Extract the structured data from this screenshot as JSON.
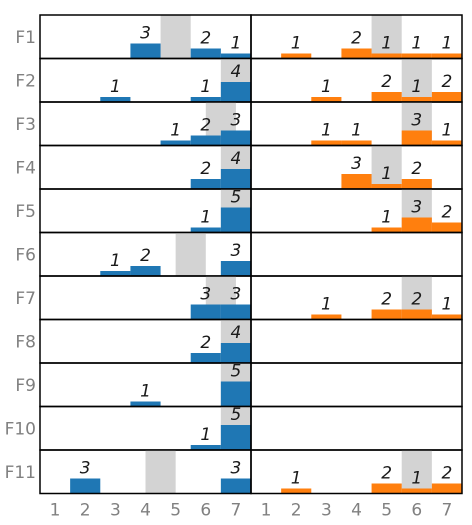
{
  "chart_data": {
    "type": "bar",
    "rows": [
      "F1",
      "F2",
      "F3",
      "F4",
      "F5",
      "F6",
      "F7",
      "F8",
      "F9",
      "F10",
      "F11"
    ],
    "x_ticks": [
      1,
      2,
      3,
      4,
      5,
      6,
      7
    ],
    "series_colors": [
      "#1f77b4",
      "#ff7f0e"
    ],
    "highlight_color": "#d3d3d3",
    "grid": false,
    "panels": [
      {
        "color": "#1f77b4",
        "rows": [
          {
            "label": "F1",
            "counts": {
              "4": 3,
              "6": 2,
              "7": 1
            },
            "highlight": [
              4.5,
              5.5
            ]
          },
          {
            "label": "F2",
            "counts": {
              "3": 1,
              "6": 1,
              "7": 4
            },
            "highlight": [
              6.5,
              7.5
            ]
          },
          {
            "label": "F3",
            "counts": {
              "5": 1,
              "6": 2,
              "7": 3
            },
            "highlight": [
              6.0,
              7.0
            ]
          },
          {
            "label": "F4",
            "counts": {
              "6": 2,
              "7": 4
            },
            "highlight": [
              6.5,
              7.5
            ]
          },
          {
            "label": "F5",
            "counts": {
              "6": 1,
              "7": 5
            },
            "highlight": [
              6.5,
              7.5
            ]
          },
          {
            "label": "F6",
            "counts": {
              "3": 1,
              "4": 2,
              "7": 3
            },
            "highlight": [
              5.0,
              6.0
            ]
          },
          {
            "label": "F7",
            "counts": {
              "6": 3,
              "7": 3
            },
            "highlight": [
              6.0,
              7.0
            ]
          },
          {
            "label": "F8",
            "counts": {
              "6": 2,
              "7": 4
            },
            "highlight": [
              6.5,
              7.5
            ]
          },
          {
            "label": "F9",
            "counts": {
              "4": 1,
              "7": 5
            },
            "highlight": [
              6.5,
              7.5
            ]
          },
          {
            "label": "F10",
            "counts": {
              "6": 1,
              "7": 5
            },
            "highlight": [
              6.5,
              7.5
            ]
          },
          {
            "label": "F11",
            "counts": {
              "2": 3,
              "7": 3
            },
            "highlight": [
              4.0,
              5.0
            ]
          }
        ]
      },
      {
        "color": "#ff7f0e",
        "rows": [
          {
            "label": "F1",
            "counts": {
              "2": 1,
              "4": 2,
              "5": 1,
              "6": 1,
              "7": 1
            },
            "highlight": [
              4.5,
              5.5
            ]
          },
          {
            "label": "F2",
            "counts": {
              "3": 1,
              "5": 2,
              "6": 1,
              "7": 2
            },
            "highlight": [
              5.5,
              6.5
            ]
          },
          {
            "label": "F3",
            "counts": {
              "3": 1,
              "4": 1,
              "6": 3,
              "7": 1
            },
            "highlight": [
              5.5,
              6.5
            ]
          },
          {
            "label": "F4",
            "counts": {
              "4": 3,
              "5": 1,
              "6": 2
            },
            "highlight": [
              4.5,
              5.5
            ]
          },
          {
            "label": "F5",
            "counts": {
              "5": 1,
              "6": 3,
              "7": 2
            },
            "highlight": [
              5.5,
              6.5
            ]
          },
          {
            "label": "F6",
            "counts": {},
            "highlight": null
          },
          {
            "label": "F7",
            "counts": {
              "3": 1,
              "5": 2,
              "6": 2,
              "7": 1
            },
            "highlight": [
              5.5,
              6.5
            ]
          },
          {
            "label": "F8",
            "counts": {},
            "highlight": null
          },
          {
            "label": "F9",
            "counts": {},
            "highlight": null
          },
          {
            "label": "F10",
            "counts": {},
            "highlight": null
          },
          {
            "label": "F11",
            "counts": {
              "2": 1,
              "5": 2,
              "6": 1,
              "7": 2
            },
            "highlight": [
              5.5,
              6.5
            ]
          }
        ]
      }
    ]
  }
}
